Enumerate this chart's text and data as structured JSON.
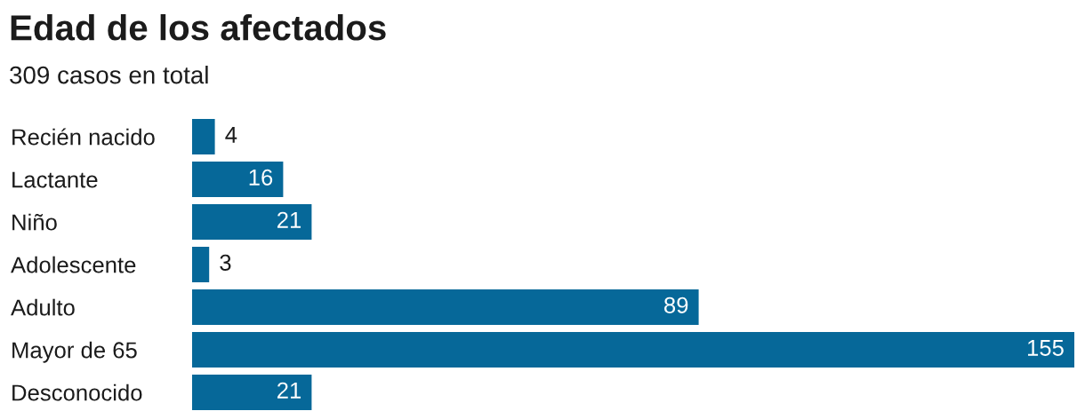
{
  "chart_data": {
    "type": "bar",
    "orientation": "horizontal",
    "title": "Edad de los afectados",
    "subtitle": "309 casos en total",
    "categories": [
      "Recién nacido",
      "Lactante",
      "Niño",
      "Adolescente",
      "Adulto",
      "Mayor de 65",
      "Desconocido"
    ],
    "values": [
      4,
      16,
      21,
      3,
      89,
      155,
      21
    ],
    "color": "#066899",
    "data_labels": true
  }
}
